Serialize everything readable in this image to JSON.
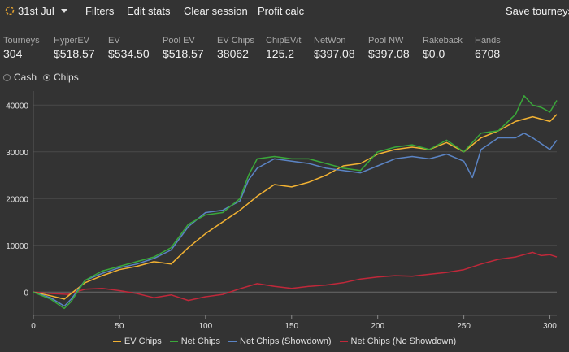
{
  "topbar": {
    "date_label": "31st Jul",
    "menu": [
      "Filters",
      "Edit stats",
      "Clear session",
      "Profit calc"
    ],
    "save_label": "Save tourneys"
  },
  "stats": [
    {
      "label": "Tourneys",
      "value": "304"
    },
    {
      "label": "HyperEV",
      "value": "$518.57"
    },
    {
      "label": "EV",
      "value": "$534.50"
    },
    {
      "label": "Pool EV",
      "value": "$518.57"
    },
    {
      "label": "EV Chips",
      "value": "38062"
    },
    {
      "label": "ChipEV/t",
      "value": "125.2"
    },
    {
      "label": "NetWon",
      "value": "$397.08"
    },
    {
      "label": "Pool NW",
      "value": "$397.08"
    },
    {
      "label": "Rakeback",
      "value": "$0.0"
    },
    {
      "label": "Hands",
      "value": "6708"
    }
  ],
  "mode": {
    "options": [
      "Cash",
      "Chips"
    ],
    "selected": "Chips"
  },
  "colors": {
    "ev_chips": "#f2b233",
    "net_chips": "#3aa83a",
    "showdown": "#5b84c4",
    "no_showdown": "#c0283a",
    "grid": "#4a4a4a",
    "axis_text": "#e0e0e0"
  },
  "chart_data": {
    "type": "line",
    "xlim": [
      0,
      304
    ],
    "ylim": [
      -5000,
      43000
    ],
    "xticks": [
      0,
      50,
      100,
      150,
      200,
      250,
      300
    ],
    "yticks": [
      0,
      10000,
      20000,
      30000,
      40000
    ],
    "grid": true,
    "legend_position": "bottom",
    "series": [
      {
        "name": "EV Chips",
        "color": "#f2b233",
        "x": [
          0,
          10,
          18,
          22,
          30,
          40,
          50,
          60,
          70,
          80,
          90,
          100,
          110,
          120,
          130,
          140,
          150,
          160,
          170,
          180,
          190,
          200,
          210,
          220,
          230,
          240,
          250,
          260,
          270,
          280,
          290,
          300,
          304
        ],
        "y": [
          0,
          -800,
          -1500,
          -300,
          2000,
          3500,
          4800,
          5500,
          6500,
          6000,
          9500,
          12500,
          15000,
          17500,
          20500,
          23000,
          22500,
          23500,
          25000,
          27000,
          27500,
          29500,
          30500,
          31000,
          30500,
          32000,
          30000,
          33000,
          34500,
          36500,
          37500,
          36500,
          38000
        ]
      },
      {
        "name": "Net Chips",
        "color": "#3aa83a",
        "x": [
          0,
          10,
          18,
          22,
          30,
          40,
          50,
          60,
          70,
          80,
          90,
          100,
          110,
          120,
          125,
          130,
          140,
          150,
          160,
          170,
          180,
          190,
          200,
          210,
          220,
          230,
          240,
          250,
          260,
          270,
          280,
          285,
          290,
          295,
          300,
          304
        ],
        "y": [
          0,
          -1500,
          -3500,
          -2000,
          2500,
          4500,
          5500,
          6500,
          7500,
          9500,
          14500,
          16500,
          17000,
          20000,
          25000,
          28500,
          29000,
          28500,
          28500,
          27500,
          26500,
          26000,
          30000,
          31000,
          31500,
          30500,
          32500,
          30000,
          34000,
          34500,
          38000,
          42000,
          40000,
          39500,
          38500,
          41000
        ]
      },
      {
        "name": "Net Chips (Showdown)",
        "color": "#5b84c4",
        "x": [
          0,
          10,
          18,
          22,
          30,
          40,
          50,
          60,
          70,
          80,
          90,
          100,
          110,
          120,
          125,
          130,
          140,
          150,
          160,
          170,
          180,
          190,
          200,
          210,
          220,
          230,
          240,
          250,
          255,
          260,
          270,
          280,
          285,
          290,
          300,
          304
        ],
        "y": [
          0,
          -1200,
          -3000,
          -1500,
          2500,
          4000,
          5200,
          6000,
          7200,
          9000,
          14000,
          17000,
          17500,
          19500,
          24000,
          26500,
          28500,
          28000,
          27500,
          26500,
          26000,
          25500,
          27000,
          28500,
          29000,
          28500,
          29500,
          28000,
          24500,
          30500,
          33000,
          33000,
          34000,
          33000,
          30500,
          32500
        ]
      },
      {
        "name": "Net Chips (No Showdown)",
        "color": "#c0283a",
        "x": [
          0,
          10,
          20,
          30,
          40,
          50,
          60,
          70,
          80,
          90,
          100,
          110,
          120,
          130,
          140,
          150,
          160,
          170,
          180,
          190,
          200,
          210,
          220,
          230,
          240,
          250,
          260,
          270,
          280,
          290,
          295,
          300,
          304
        ],
        "y": [
          0,
          -300,
          -500,
          600,
          800,
          300,
          -300,
          -1200,
          -600,
          -1800,
          -1000,
          -500,
          700,
          1800,
          1200,
          800,
          1200,
          1500,
          2000,
          2800,
          3200,
          3500,
          3400,
          3800,
          4200,
          4800,
          6000,
          7000,
          7500,
          8500,
          7800,
          8000,
          7500
        ]
      }
    ]
  }
}
